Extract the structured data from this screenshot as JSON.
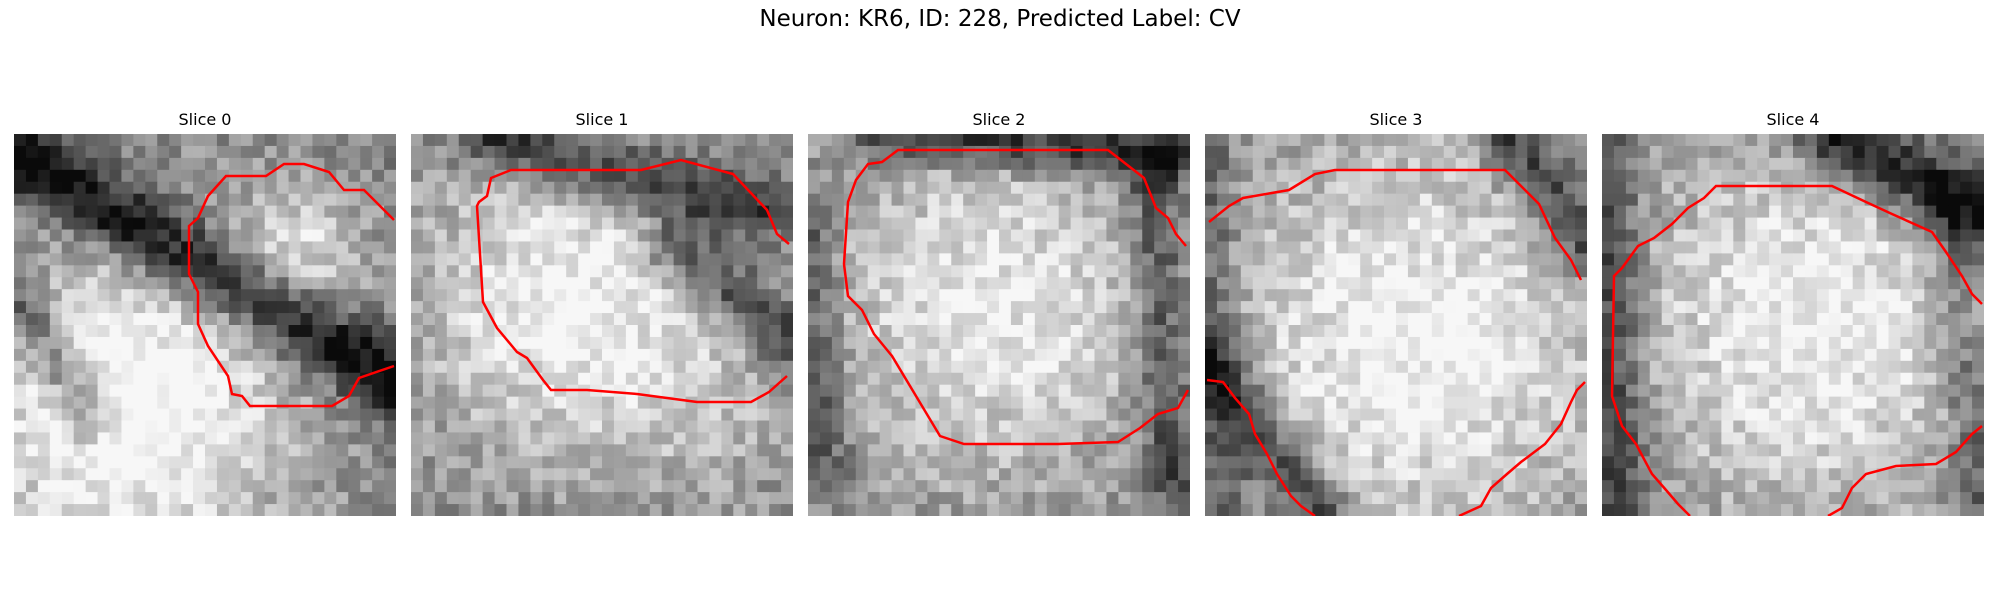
{
  "figure": {
    "title": "Neuron: KR6, ID: 228, Predicted Label: CV"
  },
  "panels": [
    {
      "title": "Slice 0"
    },
    {
      "title": "Slice 1"
    },
    {
      "title": "Slice 2"
    },
    {
      "title": "Slice 3"
    },
    {
      "title": "Slice 4"
    }
  ],
  "colors": {
    "contour": "#ff0000",
    "background": "#ffffff"
  }
}
